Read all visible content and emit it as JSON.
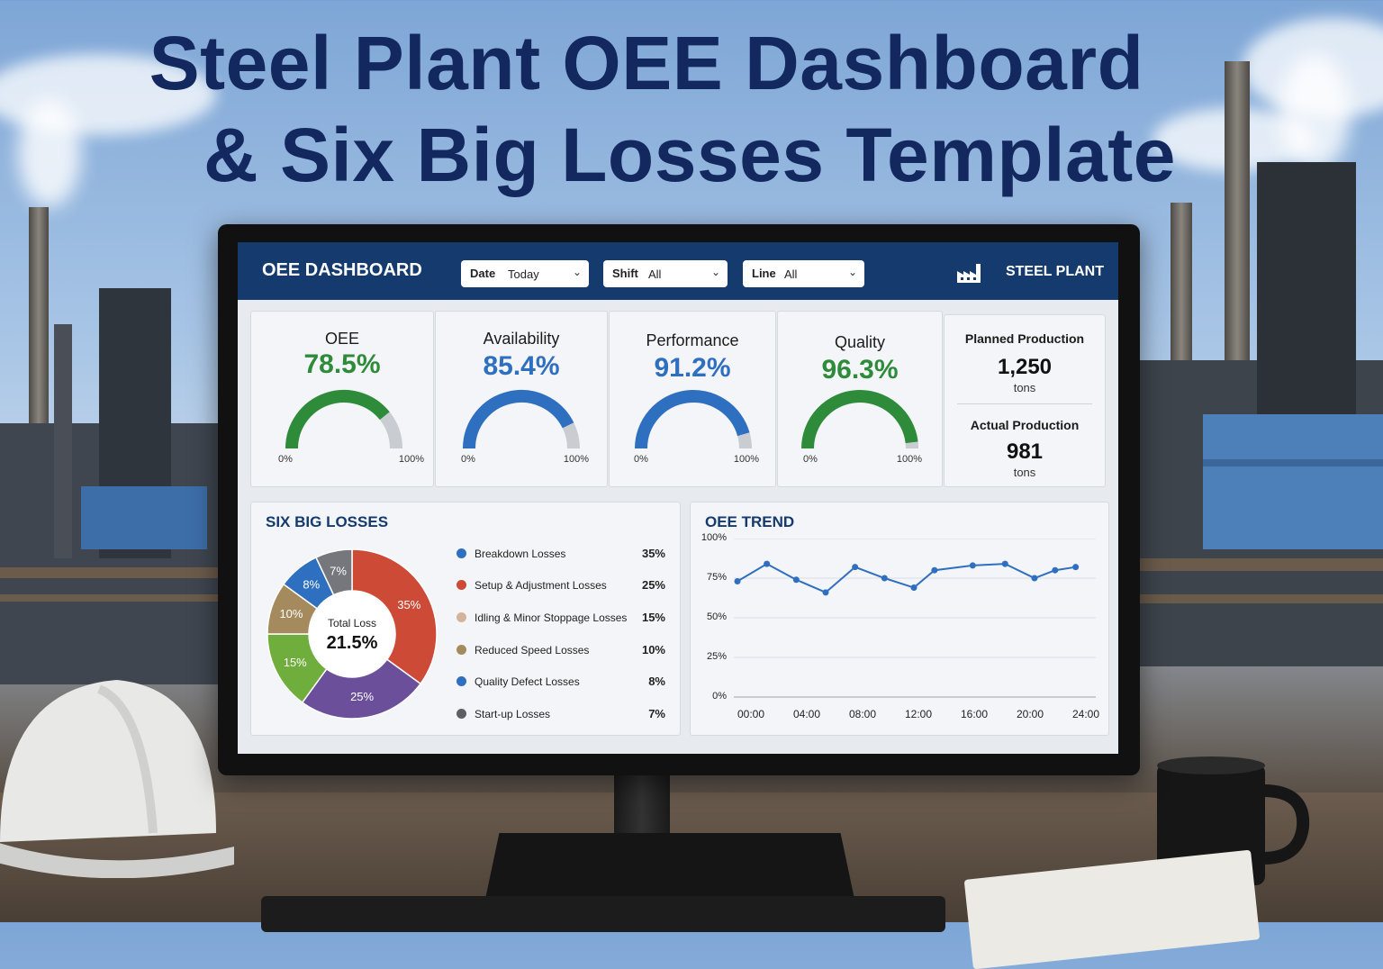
{
  "poster": {
    "title_line1": "Steel Plant OEE Dashboard",
    "title_line2": "& Six Big Losses Template"
  },
  "header": {
    "title": "OEE DASHBOARD",
    "filters": [
      {
        "label": "Date",
        "value": "Today"
      },
      {
        "label": "Shift",
        "value": "All"
      },
      {
        "label": "Line",
        "value": "All"
      }
    ],
    "brand": "STEEL PLANT",
    "brand_icon": "factory-icon"
  },
  "kpis": [
    {
      "title": "OEE",
      "value": "78.5%",
      "level": 0.785,
      "color": "#2e8b3a"
    },
    {
      "title": "Availability",
      "value": "85.4%",
      "level": 0.854,
      "color": "#2f6fc0"
    },
    {
      "title": "Performance",
      "value": "91.2%",
      "level": 0.912,
      "color": "#2f6fc0"
    },
    {
      "title": "Quality",
      "value": "96.3%",
      "level": 0.963,
      "color": "#2e8b3a"
    }
  ],
  "gauge_min": "0%",
  "gauge_max": "100%",
  "production": {
    "planned_label": "Planned Production",
    "planned_value": "1,250",
    "planned_unit": "tons",
    "actual_label": "Actual Production",
    "actual_value": "981",
    "actual_unit": "tons"
  },
  "losses": {
    "title": "SIX BIG LOSSES",
    "center_label": "Total Loss",
    "center_value": "21.5%",
    "items": [
      {
        "name": "Breakdown Losses",
        "pct": "35%",
        "value": 35,
        "color": "#cc4a36",
        "legend_color": "#2f6fc0"
      },
      {
        "name": "Setup & Adjustment Losses",
        "pct": "25%",
        "value": 25,
        "color": "#6b4f9a",
        "legend_color": "#cc4a36"
      },
      {
        "name": "Idling & Minor Stoppage Losses",
        "pct": "15%",
        "value": 15,
        "color": "#6fad3c",
        "legend_color": "#d2b49a"
      },
      {
        "name": "Reduced Speed Losses",
        "pct": "10%",
        "value": 10,
        "color": "#a58a5e",
        "legend_color": "#a58a5e"
      },
      {
        "name": "Quality Defect Losses",
        "pct": "8%",
        "value": 8,
        "color": "#2f6fc0",
        "legend_color": "#2f6fc0"
      },
      {
        "name": "Start-up Losses",
        "pct": "7%",
        "value": 7,
        "color": "#75777d",
        "legend_color": "#5c5f66"
      }
    ]
  },
  "trend": {
    "title": "OEE TREND",
    "y_ticks": [
      "100%",
      "75%",
      "50%",
      "25%",
      "0%"
    ],
    "x_ticks": [
      "00:00",
      "04:00",
      "08:00",
      "12:00",
      "16:00",
      "20:00",
      "24:00"
    ]
  },
  "chart_data": {
    "type": "line",
    "title": "OEE TREND",
    "x": [
      "00:00",
      "02:00",
      "04:00",
      "06:00",
      "08:00",
      "10:00",
      "12:00",
      "13:30",
      "16:00",
      "18:00",
      "20:00",
      "21:30",
      "23:00"
    ],
    "x_hours": [
      0,
      2,
      4,
      6,
      8,
      10,
      12,
      13.4,
      16,
      18.2,
      20.2,
      21.6,
      23
    ],
    "series": [
      {
        "values": [
          73,
          84,
          74,
          66,
          82,
          75,
          69,
          80,
          83,
          84,
          75,
          80,
          82
        ]
      }
    ],
    "ylim": [
      0,
      100
    ],
    "y_ticks": [
      "0%",
      "25%",
      "50%",
      "75%",
      "100%"
    ],
    "x_ticks": [
      "00:00",
      "04:00",
      "08:00",
      "12:00",
      "16:00",
      "20:00",
      "24:00"
    ],
    "grid": true
  }
}
